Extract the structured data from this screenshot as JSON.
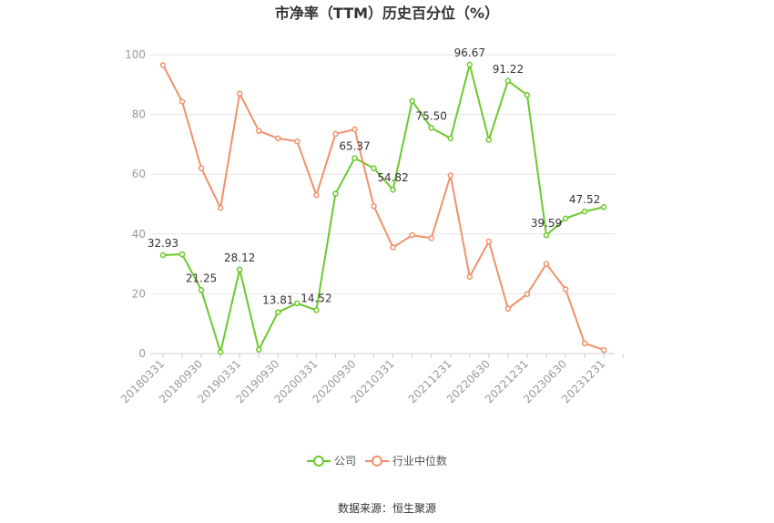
{
  "chart_data": {
    "type": "line",
    "title": "市净率（TTM）历史百分位（%）",
    "source": "数据来源：恒生聚源",
    "ylim": [
      0,
      100
    ],
    "yticks": [
      0,
      20,
      40,
      60,
      80,
      100
    ],
    "grid": true,
    "legend_position": "bottom-center",
    "x": [
      "20180331",
      "20180630",
      "20180930",
      "20181231",
      "20190331",
      "20190630",
      "20190930",
      "20191231",
      "20200331",
      "20200630",
      "20200930",
      "20201231",
      "20210331",
      "20210630",
      "20210930",
      "20211231",
      "20220331",
      "20220630",
      "20220930",
      "20221231",
      "20230331",
      "20230630",
      "20230930",
      "20231231",
      "20240331"
    ],
    "xtick_labels": [
      "20180331",
      "20180930",
      "20190331",
      "20190930",
      "20200331",
      "20200930",
      "20210331",
      "20211231",
      "20220630",
      "20221231",
      "20230630",
      "20231231"
    ],
    "series": [
      {
        "name": "公司",
        "color": "#6bc92c",
        "values": [
          32.93,
          33.2,
          21.25,
          0.5,
          28.12,
          1.3,
          13.81,
          16.8,
          14.52,
          53.5,
          65.37,
          62.0,
          54.82,
          84.5,
          75.5,
          72.0,
          96.67,
          71.5,
          91.22,
          86.5,
          39.59,
          45.2,
          47.52,
          49.0,
          null
        ],
        "labels": {
          "0": "32.93",
          "2": "21.25",
          "4": "28.12",
          "6": "13.81",
          "8": "14.52",
          "10": "65.37",
          "12": "54.82",
          "14": "75.50",
          "16": "96.67",
          "18": "91.22",
          "20": "39.59",
          "22": "47.52"
        }
      },
      {
        "name": "行业中位数",
        "color": "#f0916b",
        "values": [
          96.5,
          84.3,
          62.0,
          48.7,
          87.0,
          74.5,
          72.0,
          71.0,
          53.0,
          73.5,
          75.0,
          49.3,
          35.5,
          39.6,
          38.6,
          59.6,
          25.7,
          37.5,
          15.0,
          19.9,
          30.0,
          21.5,
          3.4,
          1.2,
          null
        ]
      }
    ]
  }
}
